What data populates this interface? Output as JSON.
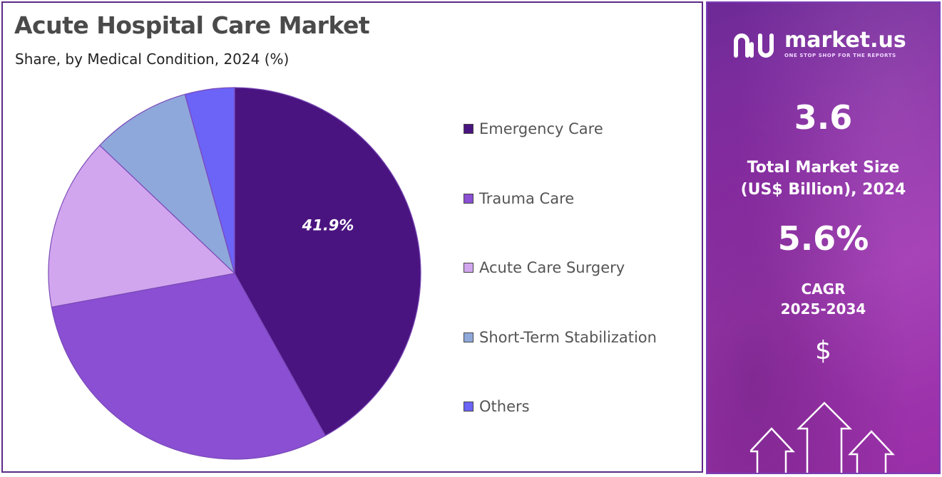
{
  "title": "Acute Hospital Care Market",
  "subtitle": "Share, by Medical Condition, 2024 (%)",
  "chart_data": {
    "type": "pie",
    "title": "Acute Hospital Care Market",
    "subtitle": "Share, by Medical Condition, 2024 (%)",
    "categories": [
      "Emergency Care",
      "Trauma Care",
      "Acute Care Surgery",
      "Short-Term Stabilization",
      "Others"
    ],
    "values": [
      41.9,
      30.2,
      15.0,
      8.6,
      4.3
    ],
    "colors": [
      "#4a1480",
      "#8a4fd2",
      "#d2a6ee",
      "#8fa8db",
      "#6c63f7"
    ],
    "data_labels": [
      "41.9%",
      "",
      "",
      "",
      ""
    ],
    "legend_position": "right"
  },
  "legend": {
    "items": [
      {
        "label": "Emergency Care",
        "color": "#4a1480"
      },
      {
        "label": "Trauma Care",
        "color": "#8a4fd2"
      },
      {
        "label": "Acute Care Surgery",
        "color": "#d2a6ee"
      },
      {
        "label": "Short-Term Stabilization",
        "color": "#8fa8db"
      },
      {
        "label": "Others",
        "color": "#6c63f7"
      }
    ]
  },
  "sidebar": {
    "logo_name": "market.us",
    "logo_tagline": "ONE STOP SHOP FOR THE REPORTS",
    "market_size_value": "3.6",
    "market_size_label_1": "Total Market Size",
    "market_size_label_2": "(US$ Billion), 2024",
    "cagr_value": "5.6%",
    "cagr_label_1": "CAGR",
    "cagr_label_2": "2025-2034",
    "currency_symbol": "$"
  }
}
